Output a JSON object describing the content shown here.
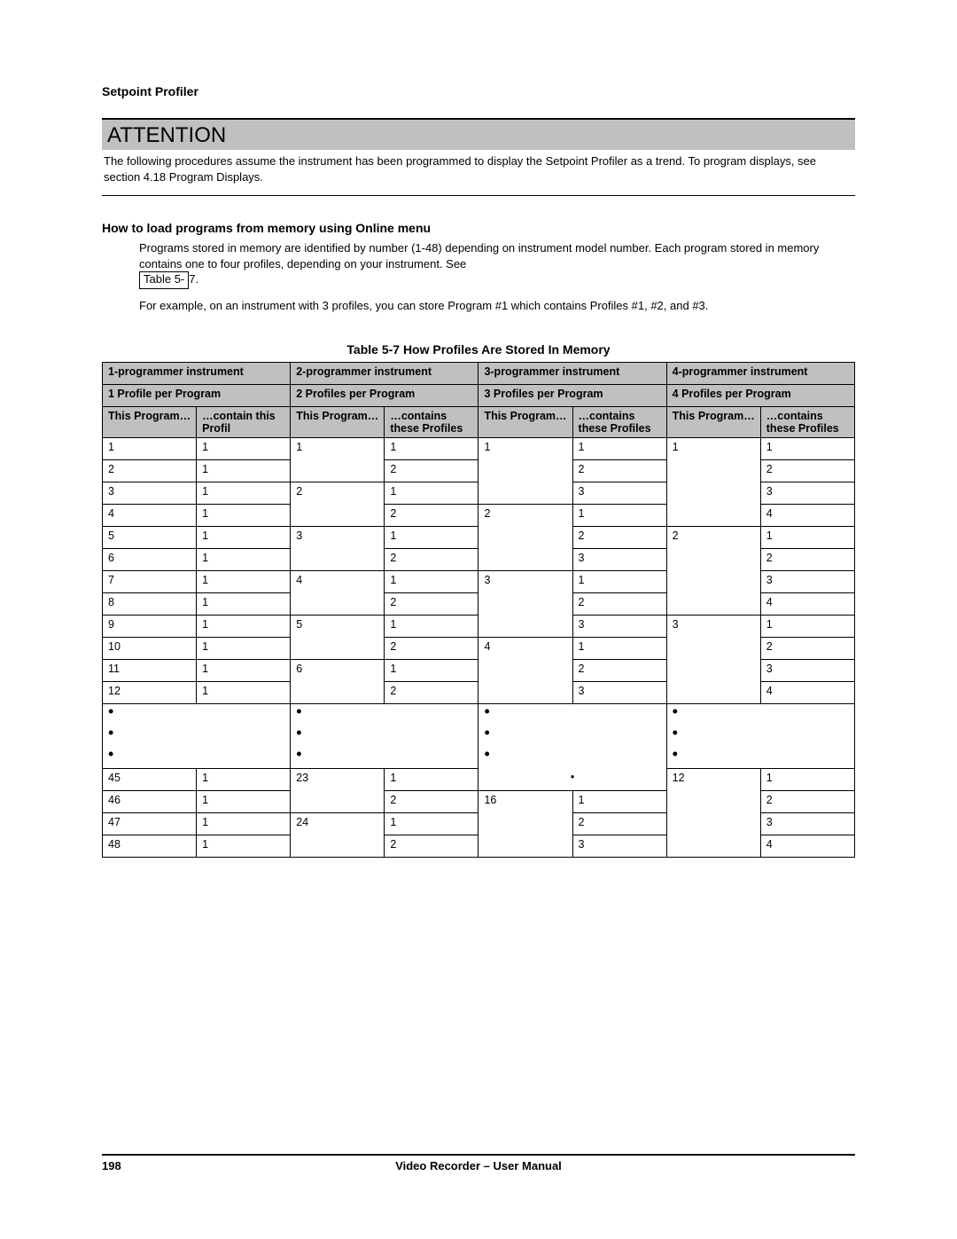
{
  "header": {
    "section": "Setpoint Profiler"
  },
  "attention": {
    "title": "ATTENTION",
    "text": "The following procedures assume the instrument has been programmed to display the Setpoint Profiler as a trend.  To program displays, see section 4.18 Program Displays."
  },
  "howto": {
    "heading": "How to load programs from memory using Online menu",
    "p1a": "Programs stored in memory are identified by number (1-48) depending on instrument model number.  Each program stored in memory contains one to four profiles, depending on your instrument.  See ",
    "ref_before": "Table 5-",
    "ref_after": "7.",
    "p2": "For example, on an instrument with 3 profiles, you can store Program #1 which contains Profiles #1, #2, and #3."
  },
  "table": {
    "caption": "Table 5-7   How Profiles Are Stored In Memory",
    "groups": [
      {
        "top": "1-programmer instrument",
        "sub": "1 Profile per Program",
        "a": "This Program…",
        "b": "…contain this Profil"
      },
      {
        "top": "2-programmer instrument",
        "sub": "2 Profiles per Program",
        "a": "This Program…",
        "b": "…contains these Profiles"
      },
      {
        "top": "3-programmer instrument",
        "sub": "3 Profiles per Program",
        "a": "This Program…",
        "b": "…contains these Profiles"
      },
      {
        "top": "4-programmer instrument",
        "sub": "4 Profiles per Program",
        "a": "This Program…",
        "b": "…contains these Profiles"
      }
    ],
    "rows": [
      {
        "c1a": "1",
        "c1b": "1",
        "c2a": "1",
        "c2b": "1",
        "c3a": "1",
        "c3b": "1",
        "c4a": "1",
        "c4b": "1",
        "c3start": true,
        "c4start": true
      },
      {
        "c1a": "2",
        "c1b": "1",
        "c2a": "",
        "c2b": "2",
        "c3a": "",
        "c3b": "2",
        "c4a": "",
        "c4b": "2"
      },
      {
        "c1a": "3",
        "c1b": "1",
        "c2a": "2",
        "c2b": "1",
        "c3a": "",
        "c3b": "3",
        "c4a": "",
        "c4b": "3"
      },
      {
        "c1a": "4",
        "c1b": "1",
        "c2a": "",
        "c2b": "2",
        "c3a": "2",
        "c3b": "1",
        "c4a": "",
        "c4b": "4",
        "c3start": true
      },
      {
        "c1a": "5",
        "c1b": "1",
        "c2a": "3",
        "c2b": "1",
        "c3a": "",
        "c3b": "2",
        "c4a": "2",
        "c4b": "1",
        "c4start": true
      },
      {
        "c1a": "6",
        "c1b": "1",
        "c2a": "",
        "c2b": "2",
        "c3a": "",
        "c3b": "3",
        "c4a": "",
        "c4b": "2"
      },
      {
        "c1a": "7",
        "c1b": "1",
        "c2a": "4",
        "c2b": "1",
        "c3a": "3",
        "c3b": "1",
        "c4a": "",
        "c4b": "3",
        "c3start": true
      },
      {
        "c1a": "8",
        "c1b": "1",
        "c2a": "",
        "c2b": "2",
        "c3a": "",
        "c3b": "2",
        "c4a": "",
        "c4b": "4"
      },
      {
        "c1a": "9",
        "c1b": "1",
        "c2a": "5",
        "c2b": "1",
        "c3a": "",
        "c3b": "3",
        "c4a": "3",
        "c4b": "1",
        "c4start": true
      },
      {
        "c1a": "10",
        "c1b": "1",
        "c2a": "",
        "c2b": "2",
        "c3a": "4",
        "c3b": "1",
        "c4a": "",
        "c4b": "2",
        "c3start": true
      },
      {
        "c1a": "11",
        "c1b": "1",
        "c2a": "6",
        "c2b": "1",
        "c3a": "",
        "c3b": "2",
        "c4a": "",
        "c4b": "3"
      },
      {
        "c1a": "12",
        "c1b": "1",
        "c2a": "",
        "c2b": "2",
        "c3a": "",
        "c3b": "3",
        "c4a": "",
        "c4b": "4"
      }
    ],
    "rows2": [
      {
        "c1a": "45",
        "c1b": "1",
        "c2a": "23",
        "c2b": "1",
        "c3a": "",
        "c3b": "",
        "c4a": "12",
        "c4b": "1",
        "c3dot": true,
        "c4start": true
      },
      {
        "c1a": "46",
        "c1b": "1",
        "c2a": "",
        "c2b": "2",
        "c3a": "16",
        "c3b": "1",
        "c4a": "",
        "c4b": "2",
        "c3start": true
      },
      {
        "c1a": "47",
        "c1b": "1",
        "c2a": "24",
        "c2b": "1",
        "c3a": "",
        "c3b": "2",
        "c4a": "",
        "c4b": "3"
      },
      {
        "c1a": "48",
        "c1b": "1",
        "c2a": "",
        "c2b": "2",
        "c3a": "",
        "c3b": "3",
        "c4a": "",
        "c4b": "4"
      }
    ]
  },
  "footer": {
    "page": "198",
    "title": "Video Recorder – User Manual"
  },
  "dot": "•"
}
